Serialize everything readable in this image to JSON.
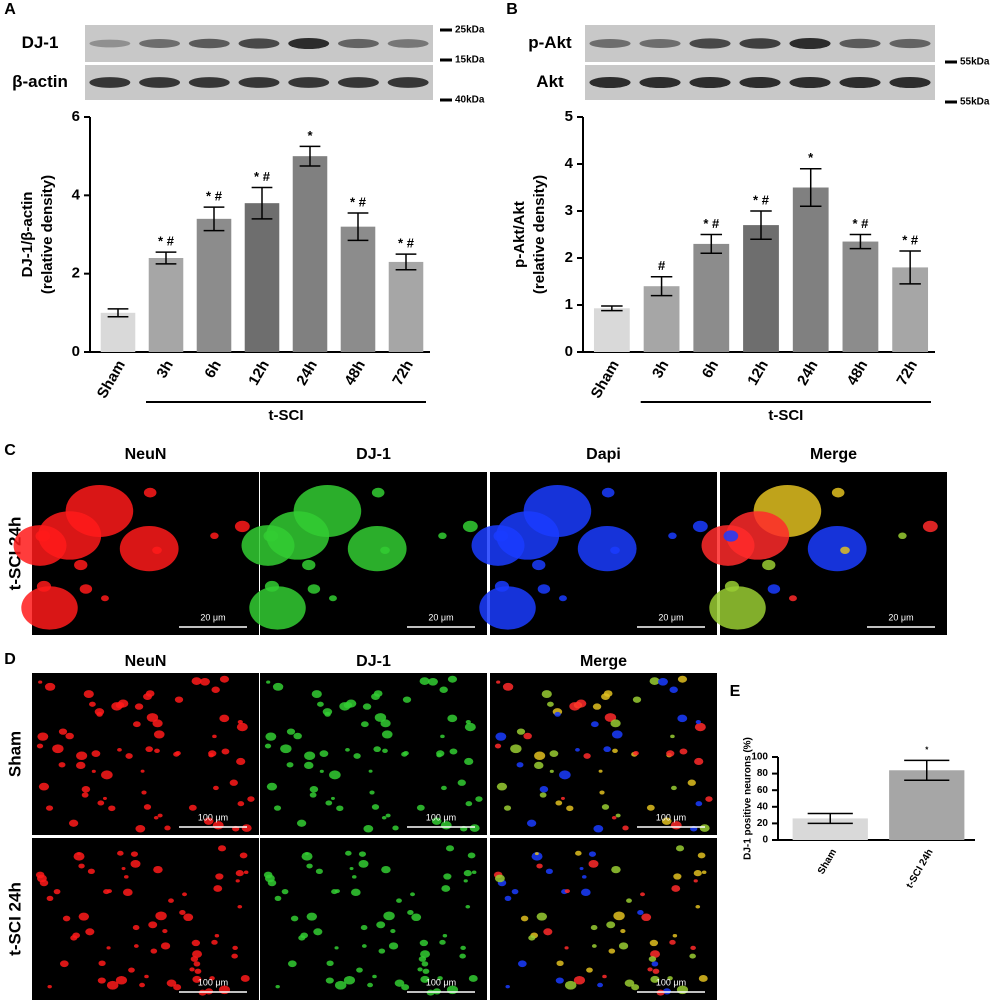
{
  "chart_data": [
    {
      "type": "bar",
      "panel": "A",
      "y_label": [
        "DJ-1/β-actin",
        "(relative density)"
      ],
      "categories": [
        "Sham",
        "3h",
        "6h",
        "12h",
        "24h",
        "48h",
        "72h"
      ],
      "values": [
        1.0,
        2.4,
        3.4,
        3.8,
        5.0,
        3.2,
        2.3
      ],
      "errors": [
        0.1,
        0.15,
        0.3,
        0.4,
        0.25,
        0.35,
        0.2
      ],
      "colors": [
        "#d9d9d9",
        "#a6a6a6",
        "#8c8c8c",
        "#6e6e6e",
        "#808080",
        "#8c8c8c",
        "#a6a6a6"
      ],
      "annotations": [
        null,
        "* #",
        "* #",
        "* #",
        "*",
        "* #",
        "* #"
      ],
      "group_label": "t-SCI",
      "ylim": [
        0,
        6
      ],
      "yticks": [
        0,
        2,
        4,
        6
      ]
    },
    {
      "type": "bar",
      "panel": "B",
      "y_label": [
        "p-Akt/Akt",
        "(relative density)"
      ],
      "categories": [
        "Sham",
        "3h",
        "6h",
        "12h",
        "24h",
        "48h",
        "72h"
      ],
      "values": [
        0.93,
        1.4,
        2.3,
        2.7,
        3.5,
        2.35,
        1.8
      ],
      "errors": [
        0.05,
        0.2,
        0.2,
        0.3,
        0.4,
        0.15,
        0.35
      ],
      "colors": [
        "#d9d9d9",
        "#a6a6a6",
        "#8c8c8c",
        "#6e6e6e",
        "#808080",
        "#8c8c8c",
        "#a6a6a6"
      ],
      "annotations": [
        null,
        "#",
        "* #",
        "* #",
        "*",
        "* #",
        "* #"
      ],
      "group_label": "t-SCI",
      "ylim": [
        0,
        5
      ],
      "yticks": [
        0,
        1,
        2,
        3,
        4,
        5
      ]
    },
    {
      "type": "bar",
      "panel": "E",
      "y_label": [
        "DJ-1 positive neurons (%)"
      ],
      "categories": [
        "Sham",
        "t-SCI 24h"
      ],
      "values": [
        26,
        84
      ],
      "errors": [
        6,
        12
      ],
      "colors": [
        "#d9d9d9",
        "#a6a6a6"
      ],
      "annotations": [
        null,
        "*"
      ],
      "ylim": [
        0,
        100
      ],
      "yticks": [
        0,
        20,
        40,
        60,
        80,
        100
      ]
    }
  ],
  "blots": [
    {
      "rows": [
        "DJ-1",
        "β-actin"
      ],
      "markers": [
        "25kDa",
        "15kDa",
        "40kDa"
      ]
    },
    {
      "rows": [
        "p-Akt",
        "Akt"
      ],
      "markers": [
        "55kDa",
        "55kDa"
      ]
    }
  ],
  "micrographs": [
    {
      "panel": "C",
      "columns": [
        "NeuN",
        "DJ-1",
        "Dapi",
        "Merge"
      ],
      "rows": [
        "t-SCI 24h"
      ],
      "scale": "20 μm"
    },
    {
      "panel": "D",
      "columns": [
        "NeuN",
        "DJ-1",
        "Merge"
      ],
      "rows": [
        "Sham",
        "t-SCI 24h"
      ],
      "scale": "100 μm"
    }
  ]
}
